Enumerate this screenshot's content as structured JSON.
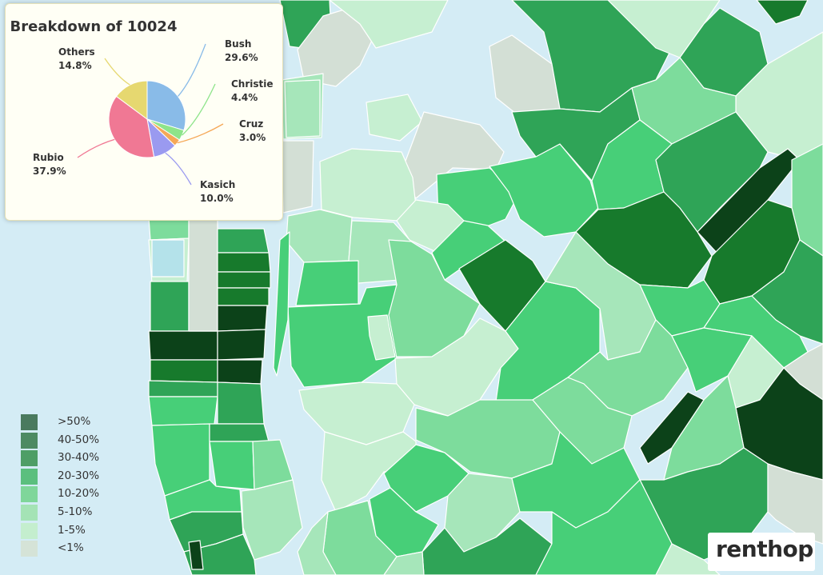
{
  "popup": {
    "title": "Breakdown of 10024",
    "chart_data": {
      "type": "pie",
      "title": "Breakdown of 10024",
      "slices": [
        {
          "label": "Bush",
          "value": 29.6,
          "display": "29.6%",
          "color": "#89bbe8"
        },
        {
          "label": "Christie",
          "value": 4.4,
          "display": "4.4%",
          "color": "#8ee48a"
        },
        {
          "label": "Cruz",
          "value": 3.0,
          "display": "3.0%",
          "color": "#f5a857"
        },
        {
          "label": "Kasich",
          "value": 10.0,
          "display": "10.0%",
          "color": "#9a9af0"
        },
        {
          "label": "Rubio",
          "value": 37.9,
          "display": "37.9%",
          "color": "#f07894"
        },
        {
          "label": "Others",
          "value": 14.8,
          "display": "14.8%",
          "color": "#e6d870"
        }
      ]
    }
  },
  "legend": {
    "items": [
      {
        "label": ">50%",
        "color": "#4a7a5e"
      },
      {
        "label": "40-50%",
        "color": "#4d8a62"
      },
      {
        "label": "30-40%",
        "color": "#4e9e66"
      },
      {
        "label": "20-30%",
        "color": "#5bbf7e"
      },
      {
        "label": "10-20%",
        "color": "#7fd69a"
      },
      {
        "label": "5-10%",
        "color": "#a4e3b5"
      },
      {
        "label": "1-5%",
        "color": "#c4eece"
      },
      {
        "label": "<1%",
        "color": "#d5e3d7"
      }
    ]
  },
  "brand": {
    "logo": "renthop"
  },
  "colors": {
    "water": "#d4ecf5",
    "bin_gt50": "#0c4219",
    "bin_40_50": "#177a2c",
    "bin_30_40": "#2fa457",
    "bin_20_30": "#47cf78",
    "bin_10_20": "#7ddc9c",
    "bin_5_10": "#a6e6ba",
    "bin_1_5": "#c6efd1",
    "bin_lt1": "#d3dfd5"
  }
}
